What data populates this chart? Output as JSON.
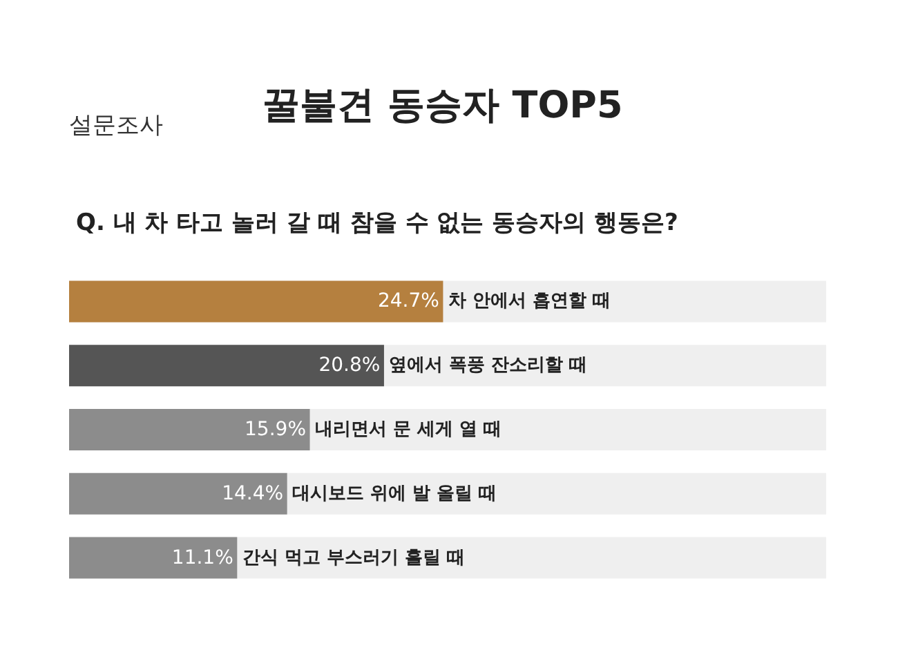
{
  "chart_data": {
    "type": "bar",
    "orientation": "horizontal",
    "title": "꿀불견 동승자 TOP5",
    "subtitle": "Q. 내 차 타고 놀러 갈 때 참을 수 없는 동승자의 행동은?",
    "annotations": [
      "설문조사"
    ],
    "categories": [
      "차 안에서 흡연할 때",
      "옆에서 폭풍 잔소리할 때",
      "내리면서 문 세게 열 때",
      "대시보드 위에 발 올릴 때",
      "간식 먹고 부스러기 흘릴 때"
    ],
    "values": [
      24.7,
      20.8,
      15.9,
      14.4,
      11.1
    ],
    "colors": [
      "#b5803f",
      "#555555",
      "#8c8c8c",
      "#8c8c8c",
      "#8c8c8c"
    ],
    "value_labels": [
      "24.7%",
      "20.8%",
      "15.9%",
      "14.4%",
      "11.1%"
    ],
    "xlim": [
      0,
      50
    ],
    "tick_labels": false,
    "grid": false
  }
}
